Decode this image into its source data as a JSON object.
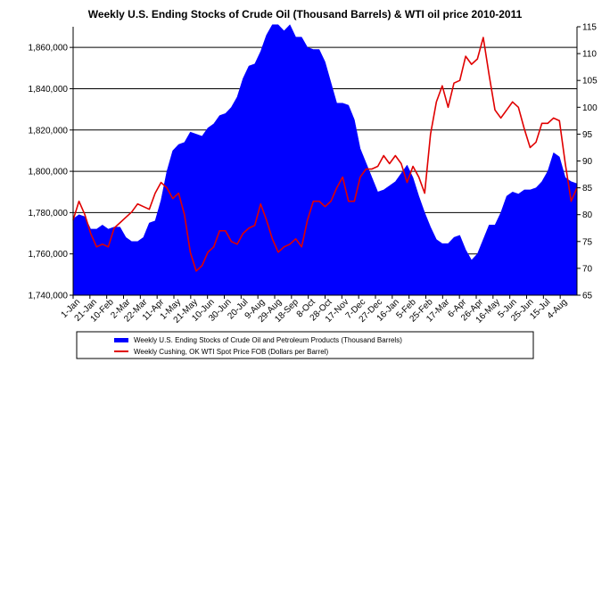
{
  "chart_data": {
    "type": "area+line",
    "title": "Weekly U.S. Ending Stocks of Crude Oil  (Thousand Barrels) & WTI oil price 2010-2011",
    "x_tick_labels": [
      "1-Jan",
      "21-Jan",
      "10-Feb",
      "2-Mar",
      "22-Mar",
      "11-Apr",
      "1-May",
      "21-May",
      "10-Jun",
      "30-Jun",
      "20-Jul",
      "9-Aug",
      "29-Aug",
      "18-Sep",
      "8-Oct",
      "28-Oct",
      "17-Nov",
      "7-Dec",
      "27-Dec",
      "16-Jan",
      "5-Feb",
      "25-Feb",
      "17-Mar",
      "6-Apr",
      "26-Apr",
      "16-May",
      "5-Jun",
      "25-Jun",
      "15-Jul",
      "4-Aug"
    ],
    "y_left": {
      "min": 1740000,
      "max": 1870000,
      "step": 20000,
      "ticks": [
        "1,740,000",
        "1,760,000",
        "1,780,000",
        "1,800,000",
        "1,820,000",
        "1,840,000",
        "1,860,000"
      ]
    },
    "y_right": {
      "min": 65,
      "max": 115,
      "step": 5,
      "ticks": [
        "65",
        "70",
        "75",
        "80",
        "85",
        "90",
        "95",
        "100",
        "105",
        "110",
        "115"
      ]
    },
    "series": [
      {
        "name": "Weekly U.S. Ending Stocks of Crude Oil and Petroleum Products  (Thousand Barrels)",
        "type": "area",
        "axis": "left",
        "color": "#0000ff",
        "values": [
          1777000,
          1779000,
          1778000,
          1772000,
          1772000,
          1774000,
          1772000,
          1773000,
          1773000,
          1768000,
          1766000,
          1766000,
          1768000,
          1775000,
          1776000,
          1786000,
          1800000,
          1810000,
          1813000,
          1814000,
          1819000,
          1818000,
          1817000,
          1821000,
          1823000,
          1827000,
          1828000,
          1831000,
          1836000,
          1845000,
          1851000,
          1852000,
          1858000,
          1866000,
          1871000,
          1871000,
          1868000,
          1871000,
          1865000,
          1865000,
          1860000,
          1859000,
          1859000,
          1853000,
          1843000,
          1833000,
          1833000,
          1832000,
          1825000,
          1811000,
          1804000,
          1797000,
          1790000,
          1791000,
          1793000,
          1795000,
          1799000,
          1803000,
          1797000,
          1788000,
          1780000,
          1773000,
          1767000,
          1765000,
          1765000,
          1768000,
          1769000,
          1762000,
          1757000,
          1760000,
          1767000,
          1774000,
          1774000,
          1780000,
          1788000,
          1790000,
          1789000,
          1791000,
          1791000,
          1792000,
          1795000,
          1800000,
          1809000,
          1807000,
          1797000,
          1795000,
          1794000
        ]
      },
      {
        "name": "Weekly Cushing, OK WTI Spot Price FOB  (Dollars per Barrel)",
        "type": "line",
        "axis": "right",
        "color": "#e00000",
        "values": [
          79,
          82.5,
          80,
          76.5,
          74,
          74.5,
          74,
          77.5,
          78.5,
          79.5,
          80.5,
          82,
          81.5,
          81,
          84,
          86,
          85,
          83,
          84,
          80,
          73,
          69.5,
          70.5,
          73,
          74,
          77,
          77,
          75,
          74.5,
          76.5,
          77.5,
          78,
          82,
          79,
          75.5,
          73,
          74,
          74.5,
          75.5,
          74,
          79,
          82.5,
          82.5,
          81.5,
          82.5,
          85,
          87,
          82.5,
          82.5,
          87,
          88.5,
          88.5,
          89,
          91,
          89.5,
          91,
          89.5,
          86,
          89,
          87,
          84,
          95,
          101,
          104,
          100,
          104.5,
          105,
          109.5,
          108,
          109,
          113,
          106,
          99.5,
          98,
          99.5,
          101,
          100,
          96,
          92.5,
          93.5,
          97,
          97,
          98,
          97.5,
          89.5,
          82.5,
          85
        ]
      }
    ],
    "legend": [
      "Weekly U.S. Ending Stocks of Crude Oil and Petroleum Products  (Thousand Barrels)",
      "Weekly Cushing, OK WTI Spot Price FOB  (Dollars per Barrel)"
    ],
    "legend_position": "bottom",
    "grid": "horizontal"
  }
}
